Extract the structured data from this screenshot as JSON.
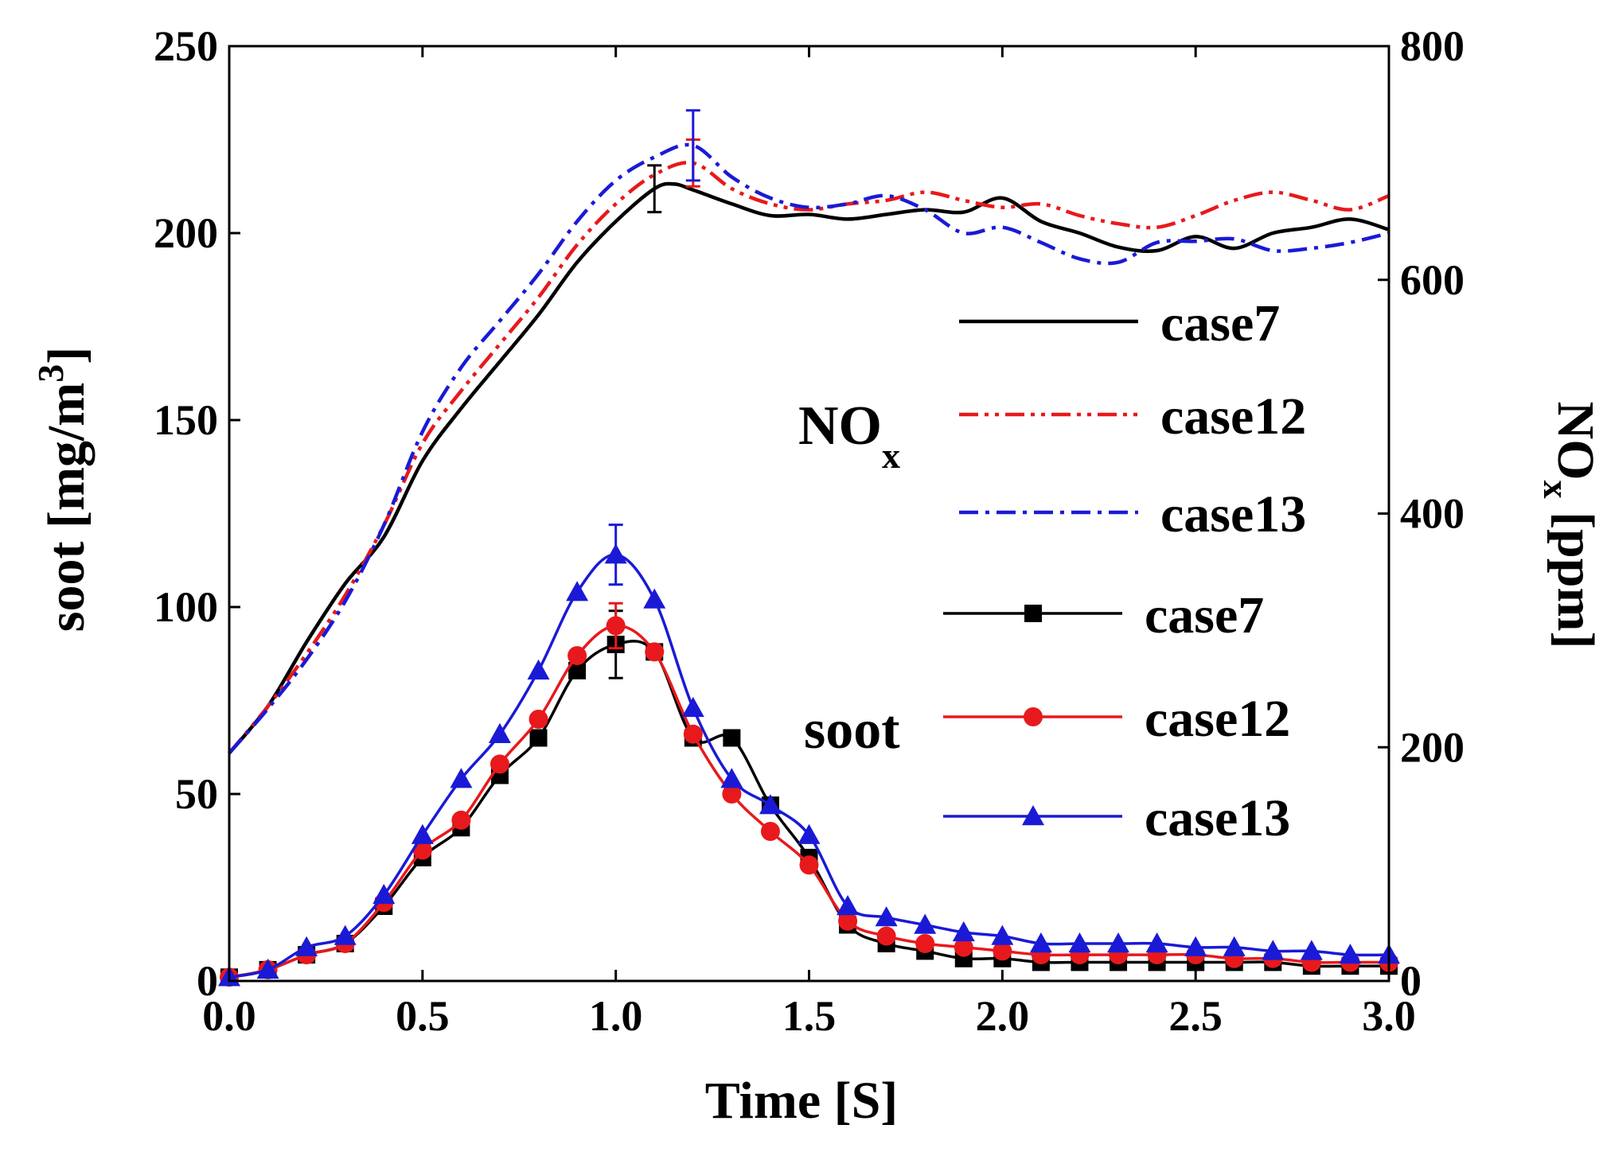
{
  "chart_data": {
    "type": "line",
    "title": "",
    "xlabel": "Time [S]",
    "ylabel_left": {
      "main": "soot [mg/m",
      "sup": "3",
      "end": "]"
    },
    "ylabel_right": {
      "main": "NO",
      "sub": "x",
      "end": " [ppm]"
    },
    "xlim": [
      0,
      3
    ],
    "ylim_left": [
      0,
      250
    ],
    "ylim_right": [
      0,
      800
    ],
    "x_ticks": [
      "0.0",
      "0.5",
      "1.0",
      "1.5",
      "2.0",
      "2.5",
      "3.0"
    ],
    "y_left_ticks": [
      "0",
      "50",
      "100",
      "150",
      "200",
      "250"
    ],
    "y_right_ticks": [
      "0",
      "200",
      "400",
      "600",
      "800"
    ],
    "legend": {
      "nox_group": {
        "main": "NO",
        "sub": "x"
      },
      "soot_group": "soot",
      "nox_entries": [
        "case7",
        "case12",
        "case13"
      ],
      "soot_entries": [
        "case7",
        "case12",
        "case13"
      ]
    },
    "colors": {
      "case7": "#000000",
      "case12": "#e8191c",
      "case13": "#1a1ad6"
    },
    "nox_series": [
      {
        "name": "case7",
        "axis": "right",
        "dash": "solid",
        "x": [
          0,
          0.1,
          0.2,
          0.3,
          0.4,
          0.5,
          0.6,
          0.7,
          0.8,
          0.9,
          1.0,
          1.1,
          1.15,
          1.2,
          1.3,
          1.4,
          1.5,
          1.6,
          1.7,
          1.8,
          1.9,
          2.0,
          2.1,
          2.2,
          2.3,
          2.4,
          2.5,
          2.6,
          2.7,
          2.8,
          2.9,
          3.0
        ],
        "y": [
          195,
          235,
          290,
          340,
          380,
          445,
          490,
          530,
          570,
          615,
          650,
          678,
          682,
          677,
          665,
          655,
          656,
          652,
          656,
          660,
          658,
          670,
          650,
          640,
          628,
          625,
          637,
          627,
          640,
          645,
          652,
          643
        ],
        "errors": [
          {
            "x": 1.1,
            "y": 678,
            "err": 20
          }
        ]
      },
      {
        "name": "case12",
        "axis": "right",
        "dash": "dashdotdot",
        "x": [
          0,
          0.1,
          0.2,
          0.3,
          0.4,
          0.5,
          0.6,
          0.7,
          0.8,
          0.9,
          1.0,
          1.1,
          1.2,
          1.3,
          1.4,
          1.5,
          1.6,
          1.7,
          1.8,
          1.9,
          2.0,
          2.1,
          2.2,
          2.3,
          2.4,
          2.5,
          2.6,
          2.7,
          2.8,
          2.9,
          3.0
        ],
        "y": [
          195,
          235,
          280,
          330,
          390,
          460,
          505,
          545,
          585,
          630,
          665,
          690,
          700,
          678,
          665,
          660,
          665,
          668,
          675,
          668,
          662,
          665,
          655,
          648,
          645,
          655,
          668,
          675,
          668,
          660,
          672
        ],
        "errors": [
          {
            "x": 1.2,
            "y": 700,
            "err": 20
          }
        ]
      },
      {
        "name": "case13",
        "axis": "right",
        "dash": "dashdot",
        "x": [
          0,
          0.1,
          0.2,
          0.3,
          0.4,
          0.5,
          0.6,
          0.7,
          0.8,
          0.9,
          1.0,
          1.1,
          1.2,
          1.3,
          1.4,
          1.5,
          1.6,
          1.7,
          1.8,
          1.9,
          2.0,
          2.1,
          2.2,
          2.3,
          2.4,
          2.5,
          2.6,
          2.7,
          2.8,
          2.9,
          3.0
        ],
        "y": [
          195,
          233,
          275,
          325,
          390,
          470,
          525,
          565,
          605,
          650,
          685,
          705,
          715,
          688,
          670,
          662,
          665,
          672,
          660,
          640,
          645,
          632,
          618,
          615,
          632,
          633,
          635,
          625,
          627,
          632,
          640
        ],
        "errors": [
          {
            "x": 1.2,
            "y": 715,
            "err": 30
          }
        ]
      }
    ],
    "soot_series": [
      {
        "name": "case7",
        "axis": "left",
        "marker": "square",
        "x": [
          0,
          0.1,
          0.2,
          0.3,
          0.4,
          0.5,
          0.6,
          0.7,
          0.8,
          0.9,
          1.0,
          1.1,
          1.2,
          1.3,
          1.4,
          1.5,
          1.6,
          1.7,
          1.8,
          1.9,
          2.0,
          2.1,
          2.2,
          2.3,
          2.4,
          2.5,
          2.6,
          2.7,
          2.8,
          2.9,
          3.0
        ],
        "y": [
          1,
          3,
          7,
          10,
          20,
          33,
          41,
          55,
          65,
          83,
          90,
          88,
          65,
          65,
          47,
          33,
          15,
          10,
          8,
          6,
          6,
          5,
          5,
          5,
          5,
          5,
          5,
          5,
          4,
          4,
          4
        ],
        "errors": [
          {
            "x": 1.0,
            "y": 90,
            "err": 9
          }
        ]
      },
      {
        "name": "case12",
        "axis": "left",
        "marker": "circle",
        "x": [
          0,
          0.1,
          0.2,
          0.3,
          0.4,
          0.5,
          0.6,
          0.7,
          0.8,
          0.9,
          1.0,
          1.1,
          1.2,
          1.3,
          1.4,
          1.5,
          1.6,
          1.7,
          1.8,
          1.9,
          2.0,
          2.1,
          2.2,
          2.3,
          2.4,
          2.5,
          2.6,
          2.7,
          2.8,
          2.9,
          3.0
        ],
        "y": [
          1,
          3,
          7,
          10,
          21,
          35,
          43,
          58,
          70,
          87,
          95,
          88,
          66,
          50,
          40,
          31,
          16,
          12,
          10,
          9,
          8,
          7,
          7,
          7,
          7,
          7,
          6,
          6,
          5,
          5,
          5
        ],
        "errors": [
          {
            "x": 1.0,
            "y": 95,
            "err": 6
          }
        ]
      },
      {
        "name": "case13",
        "axis": "left",
        "marker": "triangle",
        "x": [
          0,
          0.1,
          0.2,
          0.3,
          0.4,
          0.5,
          0.6,
          0.7,
          0.8,
          0.9,
          1.0,
          1.1,
          1.2,
          1.3,
          1.4,
          1.5,
          1.6,
          1.7,
          1.8,
          1.9,
          2.0,
          2.1,
          2.2,
          2.3,
          2.4,
          2.5,
          2.6,
          2.7,
          2.8,
          2.9,
          3.0
        ],
        "y": [
          1,
          3,
          9,
          12,
          23,
          39,
          54,
          66,
          83,
          104,
          114,
          102,
          73,
          54,
          47,
          39,
          20,
          17,
          15,
          13,
          12,
          10,
          10,
          10,
          10,
          9,
          9,
          8,
          8,
          7,
          7
        ],
        "errors": [
          {
            "x": 1.0,
            "y": 114,
            "err": 8
          }
        ]
      }
    ]
  }
}
